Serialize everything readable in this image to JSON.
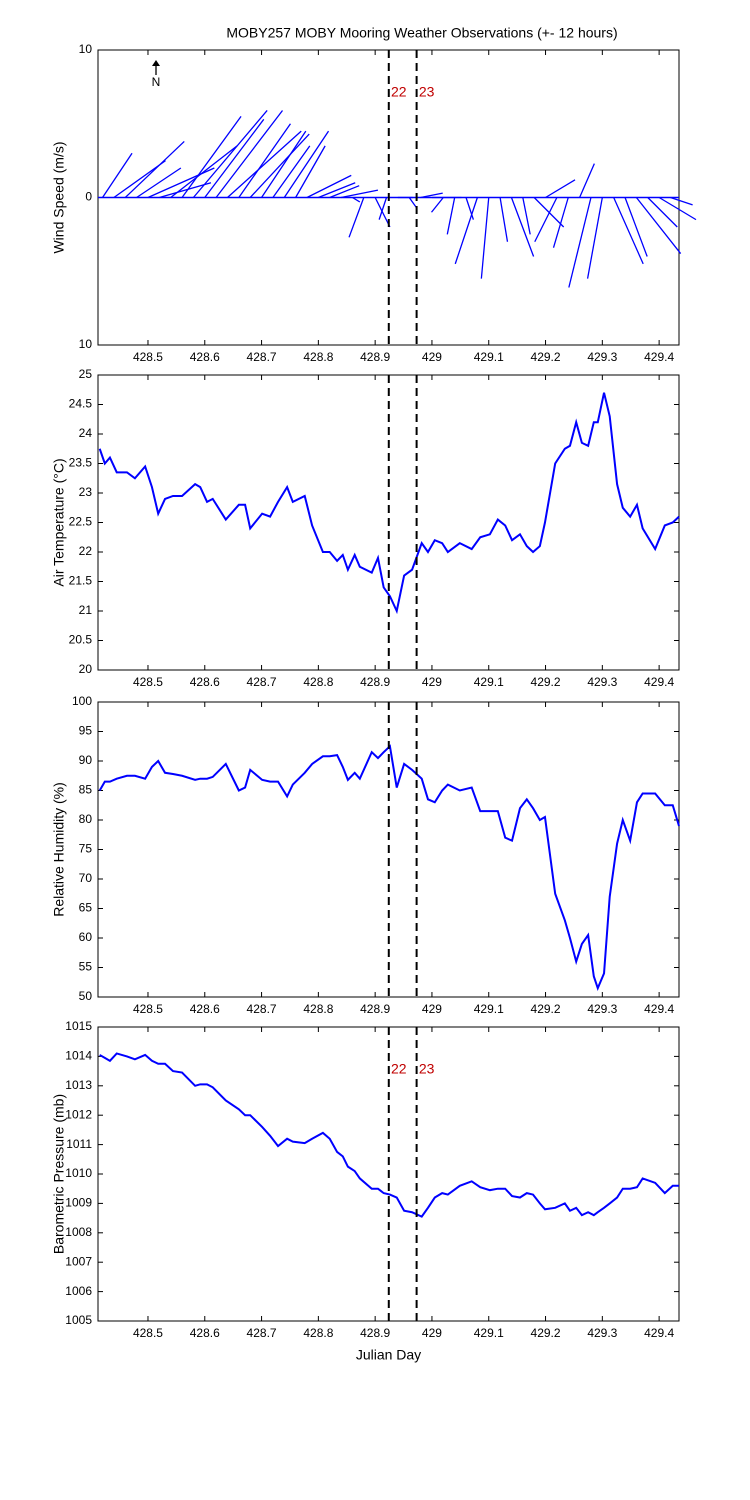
{
  "chart_data": [
    {
      "type": "quiver",
      "title": "MOBY257 MOBY Mooring Weather Observations (+- 12 hours)",
      "ylabel": "Wind Speed (m/s)",
      "north_label": "N",
      "xlim": [
        428.412,
        429.435
      ],
      "xticks": [
        428.5,
        428.6,
        428.7,
        428.8,
        428.9,
        429,
        429.1,
        429.2,
        429.3,
        429.4
      ],
      "ylim": [
        -10,
        10
      ],
      "yticks": [
        10,
        0,
        {
          "value": -10,
          "label": "10"
        }
      ],
      "color": "#0000ff",
      "vlines": [
        {
          "x": 428.924,
          "label": "22"
        },
        {
          "x": 428.973,
          "label": "23"
        }
      ],
      "x": [
        428.42,
        428.44,
        428.46,
        428.48,
        428.5,
        428.52,
        428.54,
        428.56,
        428.58,
        428.6,
        428.62,
        428.64,
        428.66,
        428.68,
        428.7,
        428.72,
        428.74,
        428.76,
        428.78,
        428.8,
        428.82,
        428.84,
        428.86,
        428.88,
        428.9,
        428.92,
        428.94,
        428.96,
        428.98,
        429,
        429.02,
        429.04,
        429.06,
        429.08,
        429.1,
        429.12,
        429.14,
        429.16,
        429.18,
        429.2,
        429.22,
        429.24,
        429.26,
        429.28,
        429.3,
        429.32,
        429.34,
        429.36,
        429.38,
        429.4,
        429.42
      ],
      "u": [
        2.0,
        3.5,
        4.0,
        3.0,
        4.5,
        3.5,
        4.5,
        4.0,
        5.0,
        4.0,
        4.5,
        5.0,
        3.5,
        4.0,
        3.0,
        2.5,
        3.0,
        2.0,
        3.0,
        2.5,
        2.0,
        2.5,
        0.5,
        -1.0,
        1.0,
        -0.5,
        1.0,
        0.5,
        1.5,
        2.0,
        -0.8,
        -0.5,
        0.5,
        -1.5,
        -0.5,
        0.5,
        1.5,
        0.5,
        2.0,
        2.0,
        -1.5,
        -1.0,
        1.0,
        -1.5,
        -1.0,
        2.0,
        1.5,
        3.0,
        2.0,
        2.5,
        1.5
      ],
      "v": [
        3.0,
        2.5,
        3.8,
        2.0,
        2.0,
        1.0,
        3.5,
        5.5,
        5.9,
        5.3,
        5.9,
        4.5,
        5.0,
        4.3,
        4.5,
        3.5,
        4.5,
        3.5,
        1.5,
        1.0,
        0.8,
        0.5,
        -0.3,
        -2.7,
        -2.0,
        -1.5,
        0.0,
        -0.7,
        0.3,
        0.0,
        -1.0,
        -2.5,
        -1.5,
        -4.5,
        -5.5,
        -3.0,
        -4.0,
        -2.5,
        -2.0,
        1.2,
        -3.0,
        -3.4,
        2.3,
        -6.1,
        -5.5,
        -4.5,
        -4.0,
        -3.8,
        -2.0,
        -1.5,
        -0.5
      ]
    },
    {
      "type": "line",
      "ylabel": "Air Temperature (°C)",
      "xlim": [
        428.412,
        429.435
      ],
      "xticks": [
        428.5,
        428.6,
        428.7,
        428.8,
        428.9,
        429,
        429.1,
        429.2,
        429.3,
        429.4
      ],
      "ylim": [
        20,
        25
      ],
      "yticks": [
        20,
        20.5,
        21,
        21.5,
        22,
        22.5,
        23,
        23.5,
        24,
        24.5,
        25
      ],
      "color": "#0000ff",
      "vlines": [
        {
          "x": 428.924
        },
        {
          "x": 428.973
        }
      ],
      "x": [
        428.415,
        428.424,
        428.433,
        428.445,
        428.463,
        428.477,
        428.495,
        428.507,
        428.518,
        428.53,
        428.544,
        428.56,
        428.583,
        428.592,
        428.604,
        428.614,
        428.637,
        428.66,
        428.671,
        428.68,
        428.701,
        428.715,
        428.729,
        428.745,
        428.755,
        428.776,
        428.789,
        428.808,
        428.82,
        428.833,
        428.843,
        428.852,
        428.864,
        428.873,
        428.894,
        428.905,
        428.915,
        428.926,
        428.938,
        428.951,
        428.965,
        428.982,
        428.993,
        429.005,
        429.018,
        429.028,
        429.049,
        429.07,
        429.085,
        429.102,
        429.116,
        429.129,
        429.141,
        429.155,
        429.167,
        429.178,
        429.19,
        429.199,
        429.217,
        429.234,
        429.243,
        429.254,
        429.264,
        429.275,
        429.285,
        429.292,
        429.303,
        429.313,
        429.326,
        429.336,
        429.349,
        429.361,
        429.371,
        429.393,
        429.41,
        429.424,
        429.435
      ],
      "values": [
        23.75,
        23.5,
        23.6,
        23.35,
        23.35,
        23.25,
        23.45,
        23.1,
        22.65,
        22.9,
        22.95,
        22.95,
        23.15,
        23.1,
        22.85,
        22.9,
        22.55,
        22.8,
        22.8,
        22.4,
        22.65,
        22.6,
        22.85,
        23.1,
        22.85,
        22.95,
        22.45,
        22.0,
        22.0,
        21.85,
        21.95,
        21.7,
        21.95,
        21.75,
        21.65,
        21.9,
        21.4,
        21.25,
        21.0,
        21.6,
        21.7,
        22.15,
        22.0,
        22.2,
        22.15,
        22.0,
        22.15,
        22.05,
        22.25,
        22.3,
        22.55,
        22.45,
        22.2,
        22.3,
        22.1,
        22.0,
        22.1,
        22.5,
        23.5,
        23.75,
        23.8,
        24.2,
        23.85,
        23.8,
        24.2,
        24.2,
        24.7,
        24.3,
        23.15,
        22.75,
        22.6,
        22.8,
        22.4,
        22.05,
        22.45,
        22.5,
        22.6
      ]
    },
    {
      "type": "line",
      "ylabel": "Relative Humidity (%)",
      "xlim": [
        428.412,
        429.435
      ],
      "xticks": [
        428.5,
        428.6,
        428.7,
        428.8,
        428.9,
        429,
        429.1,
        429.2,
        429.3,
        429.4
      ],
      "ylim": [
        50,
        100
      ],
      "yticks": [
        50,
        55,
        60,
        65,
        70,
        75,
        80,
        85,
        90,
        95,
        100
      ],
      "color": "#0000ff",
      "vlines": [
        {
          "x": 428.924
        },
        {
          "x": 428.973
        }
      ],
      "x": [
        428.415,
        428.424,
        428.433,
        428.445,
        428.463,
        428.477,
        428.495,
        428.507,
        428.518,
        428.53,
        428.544,
        428.56,
        428.583,
        428.592,
        428.604,
        428.614,
        428.637,
        428.66,
        428.671,
        428.68,
        428.701,
        428.715,
        428.729,
        428.745,
        428.755,
        428.776,
        428.789,
        428.808,
        428.82,
        428.833,
        428.843,
        428.852,
        428.864,
        428.873,
        428.894,
        428.905,
        428.915,
        428.926,
        428.938,
        428.951,
        428.965,
        428.982,
        428.993,
        429.005,
        429.018,
        429.028,
        429.049,
        429.07,
        429.085,
        429.102,
        429.116,
        429.129,
        429.141,
        429.155,
        429.167,
        429.178,
        429.19,
        429.199,
        429.217,
        429.234,
        429.243,
        429.254,
        429.264,
        429.275,
        429.285,
        429.292,
        429.303,
        429.313,
        429.326,
        429.336,
        429.349,
        429.361,
        429.371,
        429.393,
        429.41,
        429.424,
        429.435
      ],
      "values": [
        85,
        86.5,
        86.5,
        87,
        87.5,
        87.5,
        87,
        89,
        90,
        88,
        87.8,
        87.5,
        86.8,
        87,
        87,
        87.3,
        89.5,
        85,
        85.5,
        88.5,
        86.8,
        86.5,
        86.5,
        84,
        86,
        88,
        89.5,
        90.8,
        90.8,
        91,
        89,
        86.8,
        88,
        87,
        91.5,
        90.5,
        91.5,
        92.5,
        85.5,
        89.5,
        88.5,
        87,
        83.5,
        83,
        85,
        86,
        85,
        85.5,
        81.5,
        81.5,
        81.5,
        77,
        76.5,
        82,
        83.5,
        82,
        80,
        80.5,
        67.5,
        63,
        60,
        56,
        59,
        60.5,
        53.5,
        51.5,
        54,
        67,
        76,
        80,
        76.5,
        83,
        84.5,
        84.5,
        82.5,
        82.5,
        79
      ]
    },
    {
      "type": "line",
      "ylabel": "Barometric Pressure (mb)",
      "xlabel": "Julian Day",
      "xlim": [
        428.412,
        429.435
      ],
      "xticks": [
        428.5,
        428.6,
        428.7,
        428.8,
        428.9,
        429,
        429.1,
        429.2,
        429.3,
        429.4
      ],
      "ylim": [
        1005,
        1015
      ],
      "yticks": [
        1005,
        1006,
        1007,
        1008,
        1009,
        1010,
        1011,
        1012,
        1013,
        1014,
        1015
      ],
      "color": "#0000ff",
      "vlines": [
        {
          "x": 428.924,
          "label": "22"
        },
        {
          "x": 428.973,
          "label": "23"
        }
      ],
      "x": [
        428.415,
        428.424,
        428.433,
        428.445,
        428.463,
        428.477,
        428.495,
        428.507,
        428.518,
        428.53,
        428.544,
        428.56,
        428.583,
        428.592,
        428.604,
        428.614,
        428.637,
        428.66,
        428.671,
        428.68,
        428.701,
        428.715,
        428.729,
        428.745,
        428.755,
        428.776,
        428.789,
        428.808,
        428.82,
        428.833,
        428.843,
        428.852,
        428.864,
        428.873,
        428.894,
        428.905,
        428.915,
        428.926,
        428.938,
        428.951,
        428.965,
        428.982,
        428.993,
        429.005,
        429.018,
        429.028,
        429.049,
        429.07,
        429.085,
        429.102,
        429.116,
        429.129,
        429.141,
        429.155,
        429.167,
        429.178,
        429.19,
        429.199,
        429.217,
        429.234,
        429.243,
        429.254,
        429.264,
        429.275,
        429.285,
        429.292,
        429.303,
        429.313,
        429.326,
        429.336,
        429.349,
        429.361,
        429.371,
        429.393,
        429.41,
        429.424,
        429.435
      ],
      "values": [
        1014.05,
        1013.95,
        1013.85,
        1014.1,
        1014.0,
        1013.9,
        1014.05,
        1013.85,
        1013.75,
        1013.75,
        1013.5,
        1013.45,
        1013.0,
        1013.05,
        1013.05,
        1012.95,
        1012.5,
        1012.2,
        1012.0,
        1012.0,
        1011.6,
        1011.3,
        1010.95,
        1011.2,
        1011.1,
        1011.05,
        1011.2,
        1011.4,
        1011.2,
        1010.75,
        1010.6,
        1010.25,
        1010.1,
        1009.85,
        1009.5,
        1009.5,
        1009.35,
        1009.3,
        1009.2,
        1008.75,
        1008.7,
        1008.55,
        1008.85,
        1009.2,
        1009.35,
        1009.3,
        1009.6,
        1009.75,
        1009.55,
        1009.45,
        1009.5,
        1009.5,
        1009.25,
        1009.2,
        1009.35,
        1009.3,
        1009.0,
        1008.8,
        1008.85,
        1009.0,
        1008.75,
        1008.85,
        1008.6,
        1008.7,
        1008.6,
        1008.7,
        1008.85,
        1009.0,
        1009.2,
        1009.5,
        1009.5,
        1009.55,
        1009.85,
        1009.7,
        1009.35,
        1009.6,
        1009.6
      ]
    }
  ]
}
